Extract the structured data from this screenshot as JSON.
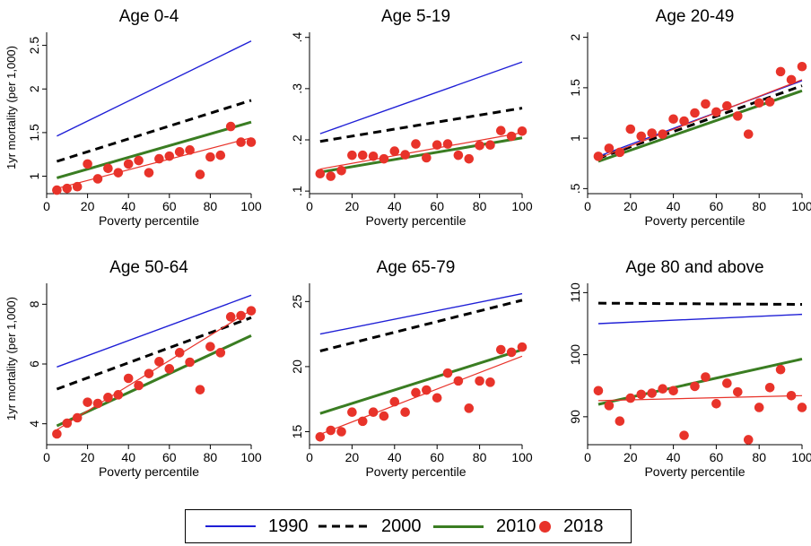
{
  "chart_data": [
    {
      "type": "line",
      "title": "Age 0-4",
      "xlabel": "Poverty percentile",
      "ylabel": "1yr mortality (per 1,000)",
      "xlim": [
        0,
        100
      ],
      "ylim": [
        0.8,
        2.65
      ],
      "xticks": [
        0,
        20,
        40,
        60,
        80,
        100
      ],
      "xtick_labels": [
        "0",
        "20",
        "40",
        "60",
        "80",
        "100"
      ],
      "yticks": [
        1,
        1.5,
        2,
        2.5
      ],
      "ytick_labels": [
        "1",
        "1.5",
        "2",
        "2.5"
      ],
      "series": [
        {
          "name": "1990",
          "style": "line",
          "x": [
            5,
            100
          ],
          "values": [
            1.46,
            2.55
          ]
        },
        {
          "name": "2000",
          "style": "line",
          "x": [
            5,
            100
          ],
          "values": [
            1.17,
            1.87
          ]
        },
        {
          "name": "2010",
          "style": "line",
          "x": [
            5,
            100
          ],
          "values": [
            0.98,
            1.62
          ]
        },
        {
          "name": "2018 fit",
          "style": "line",
          "x": [
            5,
            100
          ],
          "values": [
            0.86,
            1.44
          ]
        },
        {
          "name": "2018",
          "style": "points",
          "x": [
            5,
            10,
            15,
            20,
            25,
            30,
            35,
            40,
            45,
            50,
            55,
            60,
            65,
            70,
            75,
            80,
            85,
            90,
            95,
            100
          ],
          "values": [
            0.84,
            0.86,
            0.88,
            1.14,
            0.97,
            1.09,
            1.04,
            1.14,
            1.18,
            1.04,
            1.2,
            1.23,
            1.28,
            1.3,
            1.02,
            1.22,
            1.24,
            1.57,
            1.39,
            1.39
          ]
        }
      ]
    },
    {
      "type": "line",
      "title": "Age 5-19",
      "xlabel": "Poverty percentile",
      "ylabel": "",
      "xlim": [
        0,
        100
      ],
      "ylim": [
        0.095,
        0.41
      ],
      "xticks": [
        0,
        20,
        40,
        60,
        80,
        100
      ],
      "xtick_labels": [
        "0",
        "20",
        "40",
        "60",
        "80",
        "100"
      ],
      "yticks": [
        0.1,
        0.2,
        0.3,
        0.4
      ],
      "ytick_labels": [
        ".1",
        ".2",
        ".3",
        ".4"
      ],
      "series": [
        {
          "name": "1990",
          "style": "line",
          "x": [
            5,
            100
          ],
          "values": [
            0.212,
            0.352
          ]
        },
        {
          "name": "2000",
          "style": "line",
          "x": [
            5,
            100
          ],
          "values": [
            0.197,
            0.262
          ]
        },
        {
          "name": "2010",
          "style": "line",
          "x": [
            5,
            100
          ],
          "values": [
            0.137,
            0.204
          ]
        },
        {
          "name": "2018 fit",
          "style": "line",
          "x": [
            5,
            100
          ],
          "values": [
            0.143,
            0.214
          ]
        },
        {
          "name": "2018",
          "style": "points",
          "x": [
            5,
            10,
            15,
            20,
            25,
            30,
            35,
            40,
            45,
            50,
            55,
            60,
            65,
            70,
            75,
            80,
            85,
            90,
            95,
            100
          ],
          "values": [
            0.134,
            0.129,
            0.14,
            0.17,
            0.17,
            0.168,
            0.163,
            0.178,
            0.171,
            0.192,
            0.165,
            0.19,
            0.192,
            0.17,
            0.163,
            0.189,
            0.19,
            0.218,
            0.207,
            0.217
          ]
        }
      ]
    },
    {
      "type": "line",
      "title": "Age 20-49",
      "xlabel": "Poverty percentile",
      "ylabel": "",
      "xlim": [
        0,
        100
      ],
      "ylim": [
        0.45,
        2.05
      ],
      "xticks": [
        0,
        20,
        40,
        60,
        80,
        100
      ],
      "xtick_labels": [
        "0",
        "20",
        "40",
        "60",
        "80",
        "100"
      ],
      "yticks": [
        0.5,
        1,
        1.5,
        2
      ],
      "ytick_labels": [
        ".5",
        "1",
        "1.5",
        "2"
      ],
      "series": [
        {
          "name": "1990",
          "style": "line",
          "x": [
            5,
            100
          ],
          "values": [
            0.82,
            1.57
          ]
        },
        {
          "name": "2000",
          "style": "line",
          "x": [
            5,
            100
          ],
          "values": [
            0.8,
            1.52
          ]
        },
        {
          "name": "2010",
          "style": "line",
          "x": [
            5,
            100
          ],
          "values": [
            0.77,
            1.47
          ]
        },
        {
          "name": "2018 fit",
          "style": "line",
          "x": [
            5,
            100
          ],
          "values": [
            0.8,
            1.58
          ]
        },
        {
          "name": "2018",
          "style": "points",
          "x": [
            5,
            10,
            15,
            20,
            25,
            30,
            35,
            40,
            45,
            50,
            55,
            60,
            65,
            70,
            75,
            80,
            85,
            90,
            95,
            100
          ],
          "values": [
            0.82,
            0.9,
            0.86,
            1.09,
            1.02,
            1.05,
            1.04,
            1.19,
            1.17,
            1.25,
            1.34,
            1.26,
            1.32,
            1.22,
            1.04,
            1.35,
            1.36,
            1.66,
            1.58,
            1.71
          ]
        }
      ]
    },
    {
      "type": "line",
      "title": "Age 50-64",
      "xlabel": "Poverty percentile",
      "ylabel": "1yr mortality (per 1,000)",
      "xlim": [
        0,
        100
      ],
      "ylim": [
        3.3,
        8.7
      ],
      "xticks": [
        0,
        20,
        40,
        60,
        80,
        100
      ],
      "xtick_labels": [
        "0",
        "20",
        "40",
        "60",
        "80",
        "100"
      ],
      "yticks": [
        4,
        6,
        8
      ],
      "ytick_labels": [
        "4",
        "6",
        "8"
      ],
      "series": [
        {
          "name": "1990",
          "style": "line",
          "x": [
            5,
            100
          ],
          "values": [
            5.9,
            8.3
          ]
        },
        {
          "name": "2000",
          "style": "line",
          "x": [
            5,
            100
          ],
          "values": [
            5.16,
            7.55
          ]
        },
        {
          "name": "2010",
          "style": "line",
          "x": [
            5,
            100
          ],
          "values": [
            3.93,
            6.95
          ]
        },
        {
          "name": "2018 fit",
          "style": "line",
          "x": [
            5,
            100
          ],
          "values": [
            3.8,
            7.8
          ]
        },
        {
          "name": "2018",
          "style": "points",
          "x": [
            5,
            10,
            15,
            20,
            25,
            30,
            35,
            40,
            45,
            50,
            55,
            60,
            65,
            70,
            75,
            80,
            85,
            90,
            95,
            100
          ],
          "values": [
            3.66,
            4.02,
            4.2,
            4.72,
            4.68,
            4.88,
            4.97,
            5.52,
            5.28,
            5.68,
            6.08,
            5.84,
            6.38,
            6.06,
            5.14,
            6.58,
            6.38,
            7.58,
            7.62,
            7.78
          ]
        }
      ]
    },
    {
      "type": "line",
      "title": "Age 65-79",
      "xlabel": "Poverty percentile",
      "ylabel": "",
      "xlim": [
        0,
        100
      ],
      "ylim": [
        14.0,
        26.4
      ],
      "xticks": [
        0,
        20,
        40,
        60,
        80,
        100
      ],
      "xtick_labels": [
        "0",
        "20",
        "40",
        "60",
        "80",
        "100"
      ],
      "yticks": [
        15,
        20,
        25
      ],
      "ytick_labels": [
        "15",
        "20",
        "25"
      ],
      "series": [
        {
          "name": "1990",
          "style": "line",
          "x": [
            5,
            100
          ],
          "values": [
            22.5,
            25.6
          ]
        },
        {
          "name": "2000",
          "style": "line",
          "x": [
            5,
            100
          ],
          "values": [
            21.2,
            25.1
          ]
        },
        {
          "name": "2010",
          "style": "line",
          "x": [
            5,
            100
          ],
          "values": [
            16.4,
            21.3
          ]
        },
        {
          "name": "2018 fit",
          "style": "line",
          "x": [
            5,
            100
          ],
          "values": [
            14.8,
            20.8
          ]
        },
        {
          "name": "2018",
          "style": "points",
          "x": [
            5,
            10,
            15,
            20,
            25,
            30,
            35,
            40,
            45,
            50,
            55,
            60,
            65,
            70,
            75,
            80,
            85,
            90,
            95,
            100
          ],
          "values": [
            14.6,
            15.1,
            15.0,
            16.5,
            15.8,
            16.5,
            16.2,
            17.3,
            16.5,
            18.0,
            18.2,
            17.6,
            19.5,
            18.9,
            16.8,
            18.9,
            18.8,
            21.3,
            21.1,
            21.5
          ]
        }
      ]
    },
    {
      "type": "line",
      "title": "Age 80 and above",
      "xlabel": "Poverty percentile",
      "ylabel": "",
      "xlim": [
        0,
        100
      ],
      "ylim": [
        85.5,
        111.5
      ],
      "xticks": [
        0,
        20,
        40,
        60,
        80,
        100
      ],
      "xtick_labels": [
        "0",
        "20",
        "40",
        "60",
        "80",
        "100"
      ],
      "yticks": [
        90,
        100,
        110
      ],
      "ytick_labels": [
        "90",
        "100",
        "110"
      ],
      "series": [
        {
          "name": "1990",
          "style": "line",
          "x": [
            5,
            100
          ],
          "values": [
            105.0,
            106.5
          ]
        },
        {
          "name": "2000",
          "style": "line",
          "x": [
            5,
            100
          ],
          "values": [
            108.3,
            108.1
          ]
        },
        {
          "name": "2010",
          "style": "line",
          "x": [
            5,
            100
          ],
          "values": [
            92.0,
            99.3
          ]
        },
        {
          "name": "2018 fit",
          "style": "line",
          "x": [
            5,
            100
          ],
          "values": [
            92.6,
            93.4
          ]
        },
        {
          "name": "2018",
          "style": "points",
          "x": [
            5,
            10,
            15,
            20,
            25,
            30,
            35,
            40,
            45,
            50,
            55,
            60,
            65,
            70,
            75,
            80,
            85,
            90,
            95,
            100
          ],
          "values": [
            94.2,
            91.8,
            89.3,
            93.0,
            93.6,
            93.8,
            94.5,
            94.2,
            87.0,
            94.9,
            96.4,
            92.1,
            95.4,
            94.0,
            86.3,
            91.5,
            94.7,
            97.6,
            93.4,
            91.5
          ]
        }
      ]
    }
  ],
  "legend": {
    "items": [
      {
        "label": "1990",
        "kind": "line",
        "color": "#1f1fd6"
      },
      {
        "label": "2000",
        "kind": "dash",
        "color": "#000000"
      },
      {
        "label": "2010",
        "kind": "line",
        "color": "#3a7d22"
      },
      {
        "label": "2018",
        "kind": "dot",
        "color": "#e8332a"
      }
    ]
  },
  "colors": {
    "1990": "#1f1fd6",
    "2000": "#000000",
    "2010": "#3a7d22",
    "2018": "#e8332a"
  }
}
